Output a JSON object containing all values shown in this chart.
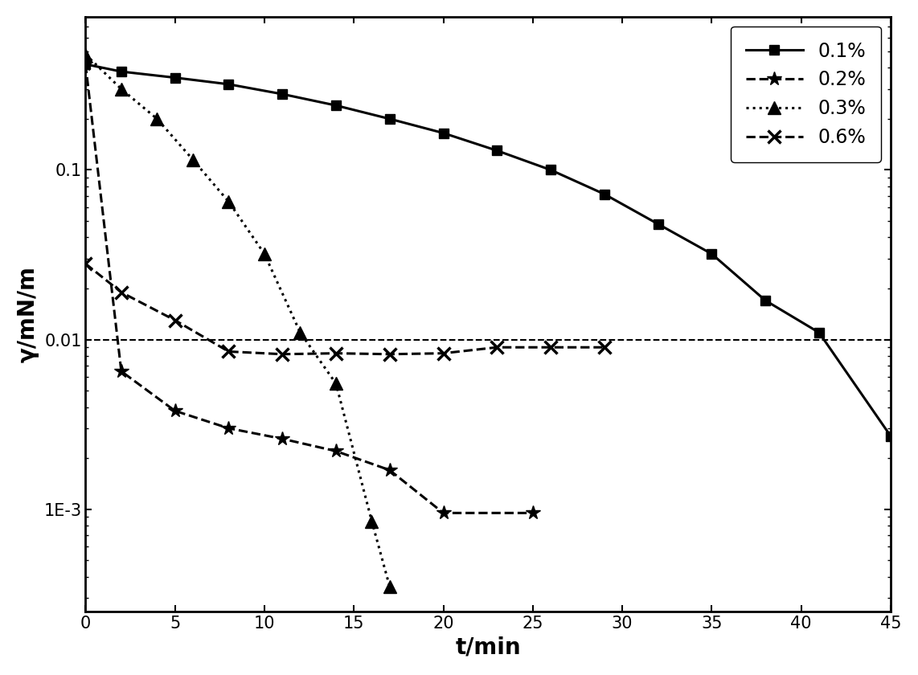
{
  "title": "",
  "xlabel": "t/min",
  "ylabel": "γ/mN/m",
  "xlim": [
    0,
    45
  ],
  "ylim_log": [
    0.00025,
    0.8
  ],
  "hline_y": 0.01,
  "series": [
    {
      "label": "0.1%",
      "linestyle": "-",
      "marker": "s",
      "color": "#000000",
      "linewidth": 2.2,
      "markersize": 8,
      "x": [
        0,
        2,
        5,
        8,
        11,
        14,
        17,
        20,
        23,
        26,
        29,
        32,
        35,
        38,
        41,
        45
      ],
      "y": [
        0.42,
        0.38,
        0.35,
        0.32,
        0.28,
        0.24,
        0.2,
        0.165,
        0.13,
        0.1,
        0.072,
        0.048,
        0.032,
        0.017,
        0.011,
        0.0027
      ]
    },
    {
      "label": "0.2%",
      "linestyle": "--",
      "marker": "*",
      "color": "#000000",
      "linewidth": 2.2,
      "markersize": 13,
      "x": [
        0,
        2,
        5,
        8,
        11,
        14,
        17,
        20,
        25
      ],
      "y": [
        0.42,
        0.0065,
        0.0038,
        0.003,
        0.0026,
        0.0022,
        0.0017,
        0.00095,
        0.00095
      ]
    },
    {
      "label": "0.3%",
      "linestyle": ":",
      "marker": "^",
      "color": "#000000",
      "linewidth": 2.2,
      "markersize": 11,
      "x": [
        0,
        2,
        4,
        6,
        8,
        10,
        12,
        14,
        16,
        17
      ],
      "y": [
        0.48,
        0.3,
        0.2,
        0.115,
        0.065,
        0.032,
        0.011,
        0.0055,
        0.00085,
        0.00035
      ]
    },
    {
      "label": "0.6%",
      "linestyle": "--",
      "marker": "x",
      "color": "#000000",
      "linewidth": 2.2,
      "markersize": 11,
      "markeredgewidth": 2.5,
      "x": [
        0,
        2,
        5,
        8,
        11,
        14,
        17,
        20,
        23,
        26,
        29
      ],
      "y": [
        0.028,
        0.019,
        0.013,
        0.0085,
        0.0082,
        0.0083,
        0.0082,
        0.0083,
        0.009,
        0.009,
        0.009
      ]
    }
  ],
  "legend_loc": "upper right",
  "tick_label_fontsize": 15,
  "axis_label_fontsize": 20,
  "legend_fontsize": 17,
  "background_color": "#ffffff"
}
